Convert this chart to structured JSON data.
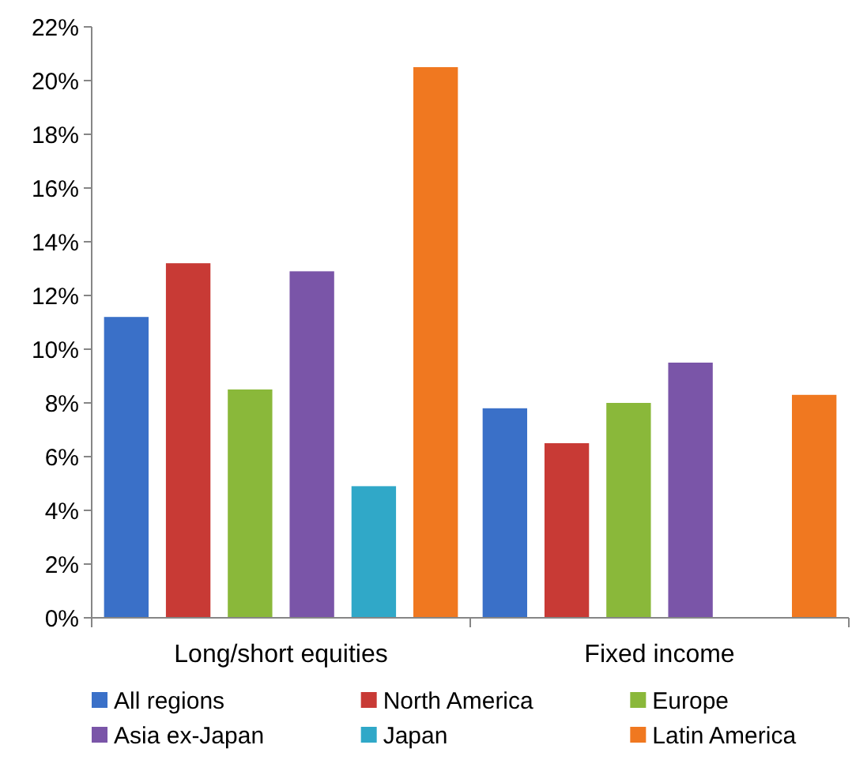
{
  "chart_data": {
    "type": "bar",
    "categories": [
      "Long/short equities",
      "Fixed income"
    ],
    "series": [
      {
        "name": "All regions",
        "color": "#3a70c8",
        "values": [
          11.2,
          7.8
        ]
      },
      {
        "name": "North America",
        "color": "#c83a35",
        "values": [
          13.2,
          6.5
        ]
      },
      {
        "name": "Europe",
        "color": "#8ab83a",
        "values": [
          8.5,
          8.0
        ]
      },
      {
        "name": "Asia ex-Japan",
        "color": "#7a55a8",
        "values": [
          12.9,
          9.5
        ]
      },
      {
        "name": "Japan",
        "color": "#30a8c8",
        "values": [
          4.9,
          null
        ]
      },
      {
        "name": "Latin America",
        "color": "#f07820",
        "values": [
          20.5,
          8.3
        ]
      }
    ],
    "ylim": [
      0,
      22
    ],
    "yticks": [
      {
        "value": 0,
        "label": "0%"
      },
      {
        "value": 2,
        "label": "2%"
      },
      {
        "value": 4,
        "label": "4%"
      },
      {
        "value": 6,
        "label": "6%"
      },
      {
        "value": 8,
        "label": "8%"
      },
      {
        "value": 10,
        "label": "10%"
      },
      {
        "value": 12,
        "label": "12%"
      },
      {
        "value": 14,
        "label": "14%"
      },
      {
        "value": 16,
        "label": "16%"
      },
      {
        "value": 18,
        "label": "18%"
      },
      {
        "value": 20,
        "label": "20%"
      },
      {
        "value": 22,
        "label": "22%"
      }
    ],
    "grid": false,
    "legend": "bottom"
  }
}
